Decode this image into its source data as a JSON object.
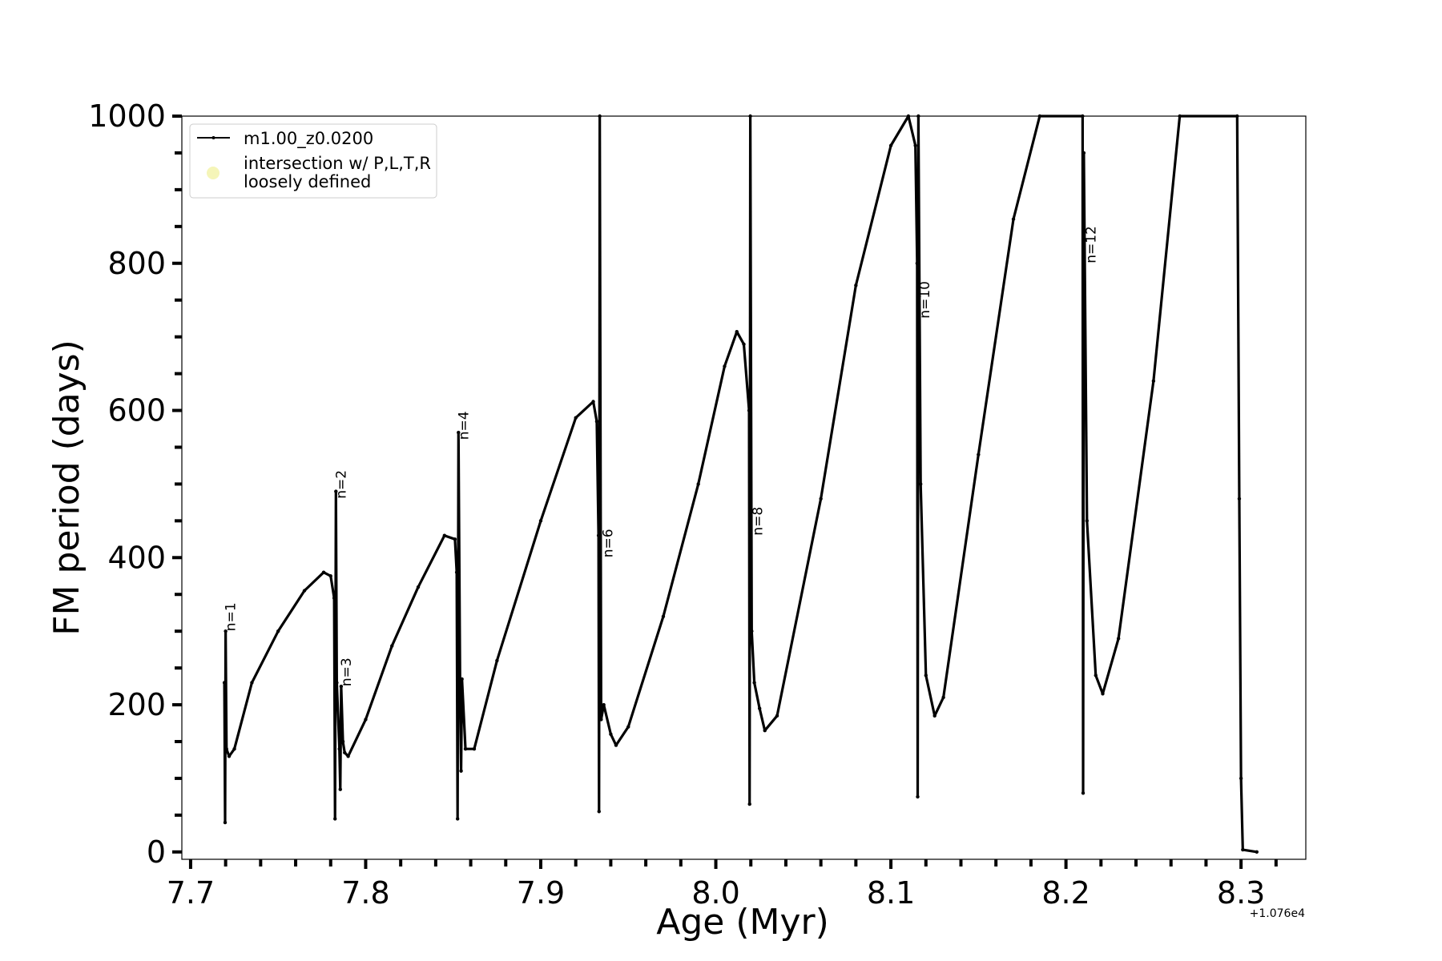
{
  "chart_data": {
    "type": "line",
    "xlabel": "Age (Myr)",
    "ylabel": "FM period (days)",
    "x_offset_text": "+1.076e4",
    "xlim": [
      7.695,
      8.337
    ],
    "ylim": [
      -10,
      1000
    ],
    "x_ticks": [
      {
        "value": 7.7,
        "label": "7.7"
      },
      {
        "value": 7.8,
        "label": "7.8"
      },
      {
        "value": 7.9,
        "label": "7.9"
      },
      {
        "value": 8.0,
        "label": "8.0"
      },
      {
        "value": 8.1,
        "label": "8.1"
      },
      {
        "value": 8.2,
        "label": "8.2"
      },
      {
        "value": 8.3,
        "label": "8.3"
      }
    ],
    "x_minor_ticks": [
      7.72,
      7.74,
      7.76,
      7.78,
      7.82,
      7.84,
      7.86,
      7.88,
      7.92,
      7.94,
      7.96,
      7.98,
      8.02,
      8.04,
      8.06,
      8.08,
      8.12,
      8.14,
      8.16,
      8.18,
      8.22,
      8.24,
      8.26,
      8.28,
      8.32
    ],
    "y_ticks": [
      {
        "value": 0,
        "label": "0"
      },
      {
        "value": 200,
        "label": "200"
      },
      {
        "value": 400,
        "label": "400"
      },
      {
        "value": 600,
        "label": "600"
      },
      {
        "value": 800,
        "label": "800"
      },
      {
        "value": 1000,
        "label": "1000"
      }
    ],
    "y_minor_ticks": [
      50,
      100,
      150,
      250,
      300,
      350,
      450,
      500,
      550,
      650,
      700,
      750,
      850,
      900,
      950
    ],
    "grid": false,
    "legend_position": "top-left",
    "legend": [
      {
        "label": "m1.00_z0.0200",
        "marker": "line",
        "color": "#000000"
      },
      {
        "label": "intersection w/ P,L,T,R",
        "label2": "loosely defined",
        "marker": "circle",
        "color": "#f5f5b8"
      }
    ],
    "series": [
      {
        "name": "m1.00_z0.0200",
        "color": "#000000",
        "points": [
          [
            7.7193,
            230
          ],
          [
            7.7197,
            40
          ],
          [
            7.72,
            300
          ],
          [
            7.7205,
            140
          ],
          [
            7.722,
            130
          ],
          [
            7.725,
            140
          ],
          [
            7.735,
            230
          ],
          [
            7.75,
            300
          ],
          [
            7.765,
            355
          ],
          [
            7.776,
            380
          ],
          [
            7.78,
            375
          ],
          [
            7.782,
            345
          ],
          [
            7.7825,
            45
          ],
          [
            7.783,
            490
          ],
          [
            7.7835,
            230
          ],
          [
            7.785,
            140
          ],
          [
            7.7855,
            85
          ],
          [
            7.786,
            225
          ],
          [
            7.787,
            150
          ],
          [
            7.788,
            135
          ],
          [
            7.79,
            130
          ],
          [
            7.8,
            180
          ],
          [
            7.815,
            280
          ],
          [
            7.83,
            360
          ],
          [
            7.845,
            430
          ],
          [
            7.851,
            425
          ],
          [
            7.852,
            380
          ],
          [
            7.8525,
            45
          ],
          [
            7.853,
            570
          ],
          [
            7.854,
            200
          ],
          [
            7.8545,
            110
          ],
          [
            7.855,
            235
          ],
          [
            7.857,
            140
          ],
          [
            7.862,
            140
          ],
          [
            7.875,
            260
          ],
          [
            7.9,
            450
          ],
          [
            7.92,
            590
          ],
          [
            7.93,
            612
          ],
          [
            7.932,
            585
          ],
          [
            7.933,
            430
          ],
          [
            7.9333,
            55
          ],
          [
            7.9337,
            1000
          ],
          [
            7.9345,
            180
          ],
          [
            7.936,
            200
          ],
          [
            7.94,
            160
          ],
          [
            7.943,
            145
          ],
          [
            7.95,
            170
          ],
          [
            7.97,
            320
          ],
          [
            7.99,
            500
          ],
          [
            8.005,
            660
          ],
          [
            8.012,
            707
          ],
          [
            8.016,
            690
          ],
          [
            8.019,
            600
          ],
          [
            8.0193,
            65
          ],
          [
            8.0197,
            1000
          ],
          [
            8.0205,
            300
          ],
          [
            8.022,
            230
          ],
          [
            8.025,
            195
          ],
          [
            8.028,
            165
          ],
          [
            8.035,
            185
          ],
          [
            8.06,
            480
          ],
          [
            8.08,
            770
          ],
          [
            8.1,
            960
          ],
          [
            8.11,
            1000
          ],
          [
            8.114,
            960
          ],
          [
            8.115,
            800
          ],
          [
            8.1153,
            75
          ],
          [
            8.1157,
            1000
          ],
          [
            8.117,
            500
          ],
          [
            8.12,
            240
          ],
          [
            8.125,
            185
          ],
          [
            8.13,
            210
          ],
          [
            8.15,
            540
          ],
          [
            8.17,
            860
          ],
          [
            8.185,
            1000
          ],
          [
            8.2095,
            1000
          ],
          [
            8.2098,
            80
          ],
          [
            8.2102,
            950
          ],
          [
            8.212,
            450
          ],
          [
            8.217,
            240
          ],
          [
            8.221,
            215
          ],
          [
            8.23,
            290
          ],
          [
            8.25,
            640
          ],
          [
            8.265,
            1000
          ],
          [
            8.2978,
            1000
          ],
          [
            8.299,
            480
          ],
          [
            8.3,
            100
          ],
          [
            8.301,
            3
          ],
          [
            8.309,
            0
          ]
        ]
      }
    ],
    "annotations": [
      {
        "text": "n=1",
        "x": 7.72,
        "y": 300
      },
      {
        "text": "n=2",
        "x": 7.783,
        "y": 480
      },
      {
        "text": "n=3",
        "x": 7.786,
        "y": 225
      },
      {
        "text": "n=4",
        "x": 7.853,
        "y": 560
      },
      {
        "text": "n=6",
        "x": 7.9355,
        "y": 400
      },
      {
        "text": "n=8",
        "x": 8.021,
        "y": 430
      },
      {
        "text": "n=10",
        "x": 8.1165,
        "y": 725
      },
      {
        "text": "n=12",
        "x": 8.2115,
        "y": 800
      }
    ]
  }
}
